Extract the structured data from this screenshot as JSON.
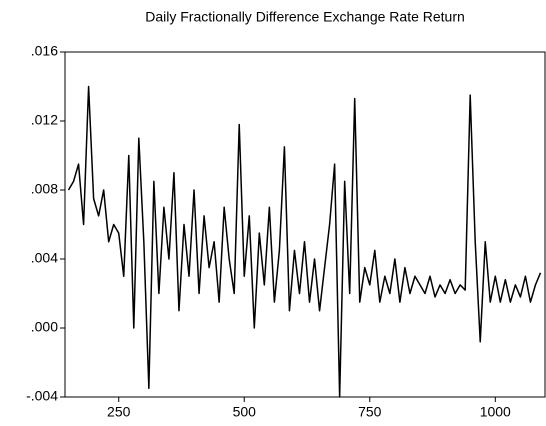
{
  "chart_data": {
    "type": "line",
    "title": "Daily Fractionally Difference Exchange Rate Return",
    "x": [
      150,
      160,
      170,
      180,
      190,
      200,
      210,
      220,
      230,
      240,
      250,
      260,
      270,
      280,
      290,
      300,
      310,
      320,
      330,
      340,
      350,
      360,
      370,
      380,
      390,
      400,
      410,
      420,
      430,
      440,
      450,
      460,
      470,
      480,
      490,
      500,
      510,
      520,
      530,
      540,
      550,
      560,
      570,
      580,
      590,
      600,
      610,
      620,
      630,
      640,
      650,
      660,
      670,
      680,
      690,
      700,
      710,
      720,
      730,
      740,
      750,
      760,
      770,
      780,
      790,
      800,
      810,
      820,
      830,
      840,
      850,
      860,
      870,
      880,
      890,
      900,
      910,
      920,
      930,
      940,
      950,
      960,
      970,
      980,
      990,
      1000,
      1010,
      1020,
      1030,
      1040,
      1050,
      1060,
      1070,
      1080,
      1090
    ],
    "values": [
      0.008,
      0.0085,
      0.0095,
      0.006,
      0.014,
      0.0075,
      0.0065,
      0.008,
      0.005,
      0.006,
      0.0055,
      0.003,
      0.01,
      0.0,
      0.011,
      0.005,
      -0.0035,
      0.0085,
      0.002,
      0.007,
      0.004,
      0.009,
      0.001,
      0.006,
      0.003,
      0.008,
      0.002,
      0.0065,
      0.0035,
      0.005,
      0.0015,
      0.007,
      0.004,
      0.002,
      0.0118,
      0.003,
      0.0065,
      0.0,
      0.0055,
      0.0025,
      0.007,
      0.0015,
      0.0045,
      0.0105,
      0.001,
      0.0045,
      0.002,
      0.005,
      0.0015,
      0.004,
      0.001,
      0.0035,
      0.006,
      0.0095,
      -0.004,
      0.0085,
      0.002,
      0.0133,
      0.0015,
      0.0035,
      0.0025,
      0.0045,
      0.0015,
      0.003,
      0.002,
      0.004,
      0.0015,
      0.0035,
      0.002,
      0.003,
      0.0025,
      0.002,
      0.003,
      0.0018,
      0.0025,
      0.002,
      0.0028,
      0.002,
      0.0025,
      0.0022,
      0.0135,
      0.005,
      -0.0008,
      0.005,
      0.0015,
      0.003,
      0.0015,
      0.0028,
      0.0015,
      0.0025,
      0.0018,
      0.003,
      0.0015,
      0.0025,
      0.0032
    ],
    "color": "#000000",
    "xlim": [
      143,
      1099
    ],
    "xticks": [
      250,
      500,
      750,
      1000
    ],
    "ylim": [
      -0.004,
      0.016
    ],
    "yticks": [
      {
        "value": -0.004,
        "label": "-.004"
      },
      {
        "value": 0,
        "label": ".000"
      },
      {
        "value": 0.004,
        "label": ".004"
      },
      {
        "value": 0.008,
        "label": ".008"
      },
      {
        "value": 0.012,
        "label": ".012"
      },
      {
        "value": 0.016,
        "label": ".016"
      }
    ]
  }
}
